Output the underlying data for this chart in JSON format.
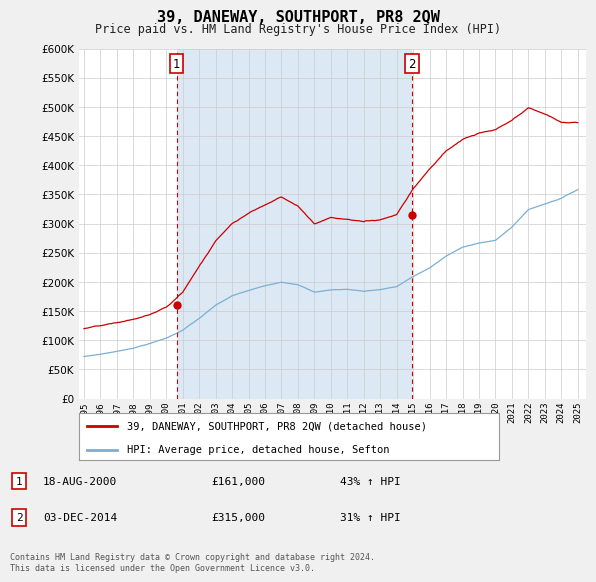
{
  "title": "39, DANEWAY, SOUTHPORT, PR8 2QW",
  "subtitle": "Price paid vs. HM Land Registry's House Price Index (HPI)",
  "line1_color": "#cc0000",
  "line2_color": "#7bafd4",
  "fill_color": "#dce9f5",
  "background_color": "#f0f0f0",
  "plot_bg_color": "#ffffff",
  "grid_color": "#cccccc",
  "ylim": [
    0,
    600000
  ],
  "yticks": [
    0,
    50000,
    100000,
    150000,
    200000,
    250000,
    300000,
    350000,
    400000,
    450000,
    500000,
    550000,
    600000
  ],
  "sale1_x": 2000.63,
  "sale1_price": 161000,
  "sale2_x": 2014.92,
  "sale2_price": 315000,
  "legend_line1": "39, DANEWAY, SOUTHPORT, PR8 2QW (detached house)",
  "legend_line2": "HPI: Average price, detached house, Sefton",
  "copyright": "Contains HM Land Registry data © Crown copyright and database right 2024.\nThis data is licensed under the Open Government Licence v3.0."
}
